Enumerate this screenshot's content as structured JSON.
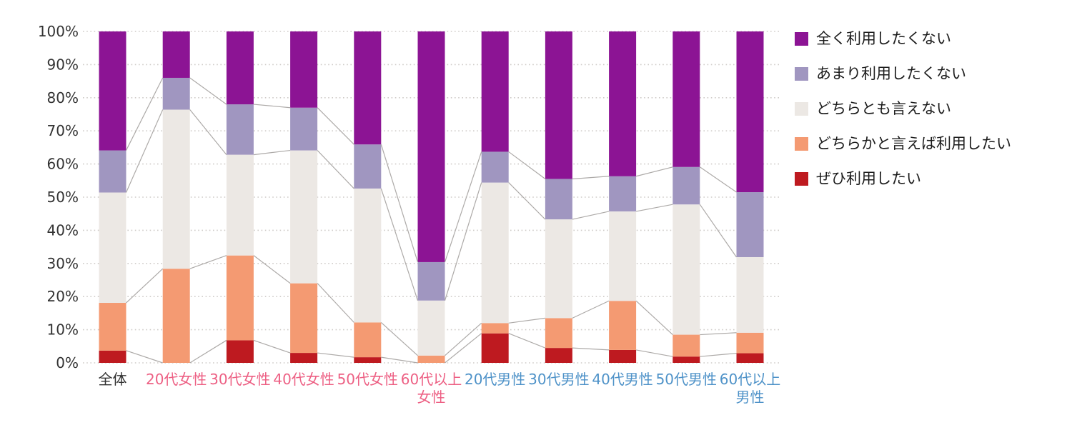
{
  "chart_data": {
    "type": "bar",
    "subtype": "stacked-100-percent",
    "categories": [
      {
        "label": "全体",
        "lines": [
          "全体"
        ],
        "group": "overall"
      },
      {
        "label": "20代女性",
        "lines": [
          "20代女性"
        ],
        "group": "female"
      },
      {
        "label": "30代女性",
        "lines": [
          "30代女性"
        ],
        "group": "female"
      },
      {
        "label": "40代女性",
        "lines": [
          "40代女性"
        ],
        "group": "female"
      },
      {
        "label": "50代女性",
        "lines": [
          "50代女性"
        ],
        "group": "female"
      },
      {
        "label": "60代以上女性",
        "lines": [
          "60代以上",
          "女性"
        ],
        "group": "female"
      },
      {
        "label": "20代男性",
        "lines": [
          "20代男性"
        ],
        "group": "male"
      },
      {
        "label": "30代男性",
        "lines": [
          "30代男性"
        ],
        "group": "male"
      },
      {
        "label": "40代男性",
        "lines": [
          "40代男性"
        ],
        "group": "male"
      },
      {
        "label": "50代男性",
        "lines": [
          "50代男性"
        ],
        "group": "male"
      },
      {
        "label": "60代以上男性",
        "lines": [
          "60代以上",
          "男性"
        ],
        "group": "male"
      }
    ],
    "series": [
      {
        "name": "ぜひ利用したい",
        "color": "#BE1A20",
        "values": [
          3.7,
          0.0,
          6.8,
          3.0,
          1.7,
          0.0,
          8.9,
          4.5,
          3.9,
          1.9,
          2.9
        ]
      },
      {
        "name": "どちらかと言えば利用したい",
        "color": "#F49A72",
        "values": [
          14.4,
          28.4,
          25.6,
          21.0,
          10.5,
          2.2,
          3.1,
          9.0,
          14.8,
          6.6,
          6.2
        ]
      },
      {
        "name": "どちらとも言えない",
        "color": "#ECE8E4",
        "values": [
          33.3,
          48.0,
          30.4,
          40.1,
          40.4,
          16.6,
          42.4,
          29.8,
          27.0,
          39.3,
          22.8
        ]
      },
      {
        "name": "あまり利用したくない",
        "color": "#A096C0",
        "values": [
          12.7,
          9.6,
          15.2,
          12.9,
          13.3,
          11.6,
          9.3,
          12.2,
          10.6,
          11.3,
          19.6
        ]
      },
      {
        "name": "全く利用したくない",
        "color": "#8C1494",
        "values": [
          35.9,
          14.0,
          22.0,
          23.0,
          34.1,
          69.6,
          36.3,
          44.5,
          43.7,
          40.9,
          48.5
        ]
      }
    ],
    "legend_order": [
      4,
      3,
      2,
      1,
      0
    ],
    "legend_position": "right",
    "ylim": [
      0,
      100
    ],
    "y_ticks": [
      "0%",
      "10%",
      "20%",
      "30%",
      "40%",
      "50%",
      "60%",
      "70%",
      "80%",
      "90%",
      "100%"
    ],
    "grid": true,
    "grid_style": "dotted",
    "series_connector_lines": true,
    "colors": {
      "axis_text": "#333333",
      "gridline": "#CFCBC8",
      "connector_line": "#ADAAA8",
      "background": "#FFFFFF",
      "category_label": {
        "overall": "#333333",
        "female": "#ED6084",
        "male": "#4E92C8"
      }
    }
  }
}
